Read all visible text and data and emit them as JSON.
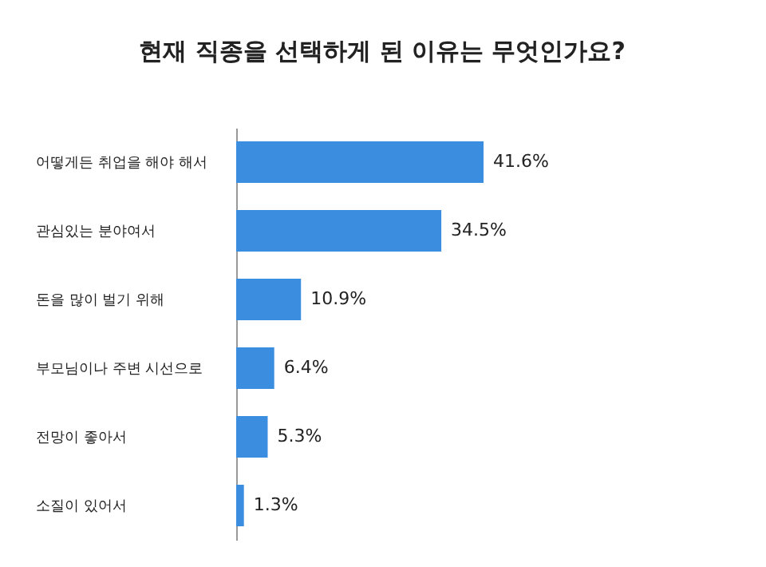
{
  "chart_data": {
    "type": "bar",
    "orientation": "horizontal",
    "title": "현재 직종을 선택하게 된 이유는 무엇인가요?",
    "categories": [
      "어떻게든 취업을 해야 해서",
      "관심있는 분야여서",
      "돈을 많이 벌기 위해",
      "부모님이나 주변 시선으로",
      "전망이 좋아서",
      "소질이 있어서"
    ],
    "values": [
      41.6,
      34.5,
      10.9,
      6.4,
      5.3,
      1.3
    ],
    "value_labels": [
      "41.6%",
      "34.5%",
      "10.9%",
      "6.4%",
      "5.3%",
      "1.3%"
    ],
    "color": "#3b8de0",
    "grid": false
  }
}
